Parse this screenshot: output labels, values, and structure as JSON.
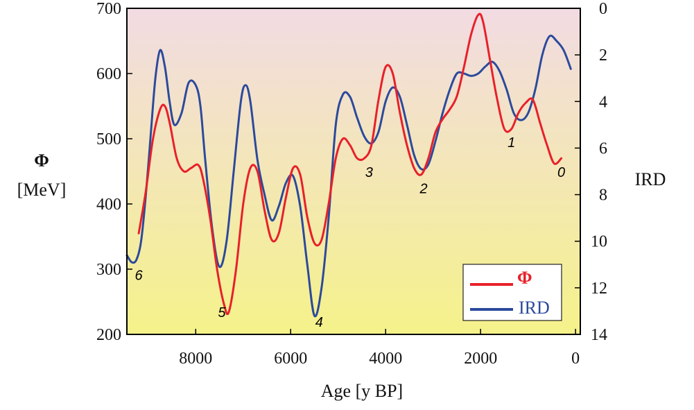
{
  "chart_data": {
    "type": "line",
    "title": "",
    "xlabel": "Age [y BP]",
    "ylabel_left_symbol": "Φ",
    "ylabel_left_unit": "[MeV]",
    "ylabel_right": "IRD",
    "xlim": [
      9450,
      -100
    ],
    "x_ticks": [
      8000,
      6000,
      4000,
      2000,
      0
    ],
    "ylim_left": [
      200,
      700
    ],
    "left_ticks": [
      200,
      300,
      400,
      500,
      600,
      700
    ],
    "ylim_right": [
      14,
      0
    ],
    "right_ticks": [
      0,
      2,
      4,
      6,
      8,
      10,
      12,
      14
    ],
    "background_gradient": [
      "#f2dbe3",
      "#f5f28a"
    ],
    "series": [
      {
        "name": "Φ",
        "axis": "left",
        "color": "#e8202a",
        "x": [
          9200,
          9050,
          8900,
          8750,
          8650,
          8550,
          8400,
          8250,
          8100,
          7950,
          7850,
          7700,
          7550,
          7400,
          7300,
          7150,
          7000,
          6850,
          6700,
          6550,
          6400,
          6250,
          6100,
          5950,
          5800,
          5650,
          5500,
          5350,
          5200,
          5050,
          4900,
          4750,
          4600,
          4450,
          4300,
          4150,
          4000,
          3850,
          3700,
          3550,
          3400,
          3250,
          3100,
          2950,
          2800,
          2650,
          2500,
          2350,
          2200,
          2050,
          1950,
          1800,
          1650,
          1500,
          1350,
          1200,
          1050,
          900,
          750,
          600,
          450,
          300
        ],
        "y": [
          355,
          420,
          500,
          545,
          550,
          525,
          470,
          450,
          455,
          460,
          440,
          380,
          300,
          245,
          235,
          300,
          400,
          455,
          450,
          390,
          345,
          355,
          410,
          455,
          445,
          380,
          340,
          345,
          400,
          470,
          500,
          490,
          470,
          470,
          490,
          560,
          610,
          600,
          540,
          490,
          455,
          445,
          470,
          510,
          530,
          545,
          565,
          610,
          660,
          690,
          680,
          620,
          560,
          515,
          515,
          540,
          555,
          560,
          525,
          490,
          462,
          470
        ]
      },
      {
        "name": "IRD",
        "axis": "right",
        "color": "#2b4a9c",
        "x": [
          9450,
          9350,
          9250,
          9150,
          9050,
          8950,
          8850,
          8750,
          8650,
          8550,
          8450,
          8300,
          8150,
          8000,
          7900,
          7800,
          7650,
          7500,
          7350,
          7200,
          7050,
          6950,
          6850,
          6700,
          6550,
          6400,
          6250,
          6100,
          5950,
          5800,
          5650,
          5500,
          5350,
          5200,
          5050,
          4900,
          4750,
          4600,
          4450,
          4300,
          4150,
          4000,
          3850,
          3700,
          3550,
          3400,
          3250,
          3100,
          2950,
          2800,
          2650,
          2500,
          2350,
          2200,
          2050,
          1900,
          1750,
          1600,
          1450,
          1300,
          1150,
          1000,
          850,
          700,
          550,
          400,
          250,
          100
        ],
        "y": [
          10.6,
          10.9,
          10.8,
          10,
          8,
          5.5,
          3,
          1.8,
          2.5,
          4,
          5,
          4.5,
          3.2,
          3.3,
          4.2,
          6.5,
          9.5,
          11.1,
          10,
          7,
          4,
          3.3,
          4,
          6.5,
          8,
          9.1,
          8.5,
          7.5,
          7.2,
          8.5,
          11,
          13.2,
          12,
          9,
          5,
          3.7,
          3.8,
          4.7,
          5.5,
          5.8,
          5.3,
          4,
          3.4,
          3.8,
          5,
          6.3,
          6.9,
          6.7,
          5.7,
          4.5,
          3.5,
          2.8,
          2.8,
          2.9,
          2.8,
          2.5,
          2.3,
          2.7,
          3.5,
          4.5,
          4.8,
          4.5,
          3.5,
          2,
          1.2,
          1.4,
          1.8,
          2.6
        ]
      }
    ],
    "event_labels": [
      {
        "text": "0",
        "x": 300,
        "y_left": 450
      },
      {
        "text": "1",
        "x": 1350,
        "y_left": 496
      },
      {
        "text": "2",
        "x": 3200,
        "y_left": 425
      },
      {
        "text": "3",
        "x": 4350,
        "y_left": 450
      },
      {
        "text": "4",
        "x": 5400,
        "y_left": 220
      },
      {
        "text": "5",
        "x": 7450,
        "y_left": 235
      },
      {
        "text": "6",
        "x": 9200,
        "y_left": 292
      }
    ],
    "legend": {
      "position": "bottom-right",
      "entries": [
        "Φ",
        "IRD"
      ]
    }
  }
}
